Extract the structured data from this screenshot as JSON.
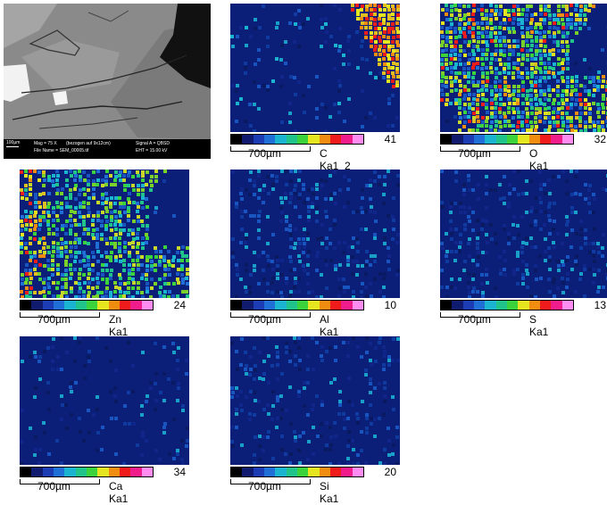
{
  "sem_image": {
    "scale_label": "100µm",
    "mag": "Mag =    75 X",
    "mag_note": "(bezogen auf 9x12cm)",
    "signal": "Signal A = QBSD",
    "file": "File Name = SEM_00005.tif",
    "eht": "EHT = 15.00 kV"
  },
  "maps": [
    {
      "element": "C Ka1_2",
      "max": "41",
      "scale": "700µm"
    },
    {
      "element": "O Ka1",
      "max": "32",
      "scale": "700µm"
    },
    {
      "element": "Zn Ka1",
      "max": "24",
      "scale": "700µm"
    },
    {
      "element": "Al Ka1",
      "max": "10",
      "scale": "700µm"
    },
    {
      "element": "S Ka1",
      "max": "13",
      "scale": "700µm"
    },
    {
      "element": "Ca Ka1",
      "max": "34",
      "scale": "700µm"
    },
    {
      "element": "Si Ka1",
      "max": "20",
      "scale": "700µm"
    }
  ],
  "colorscale": [
    "#000000",
    "#101a6e",
    "#1c3cb4",
    "#1f6fd6",
    "#1ab3d0",
    "#20c48a",
    "#3cd23c",
    "#e6e620",
    "#f08c10",
    "#f01c1c",
    "#f01c8c",
    "#ff8cf0"
  ]
}
